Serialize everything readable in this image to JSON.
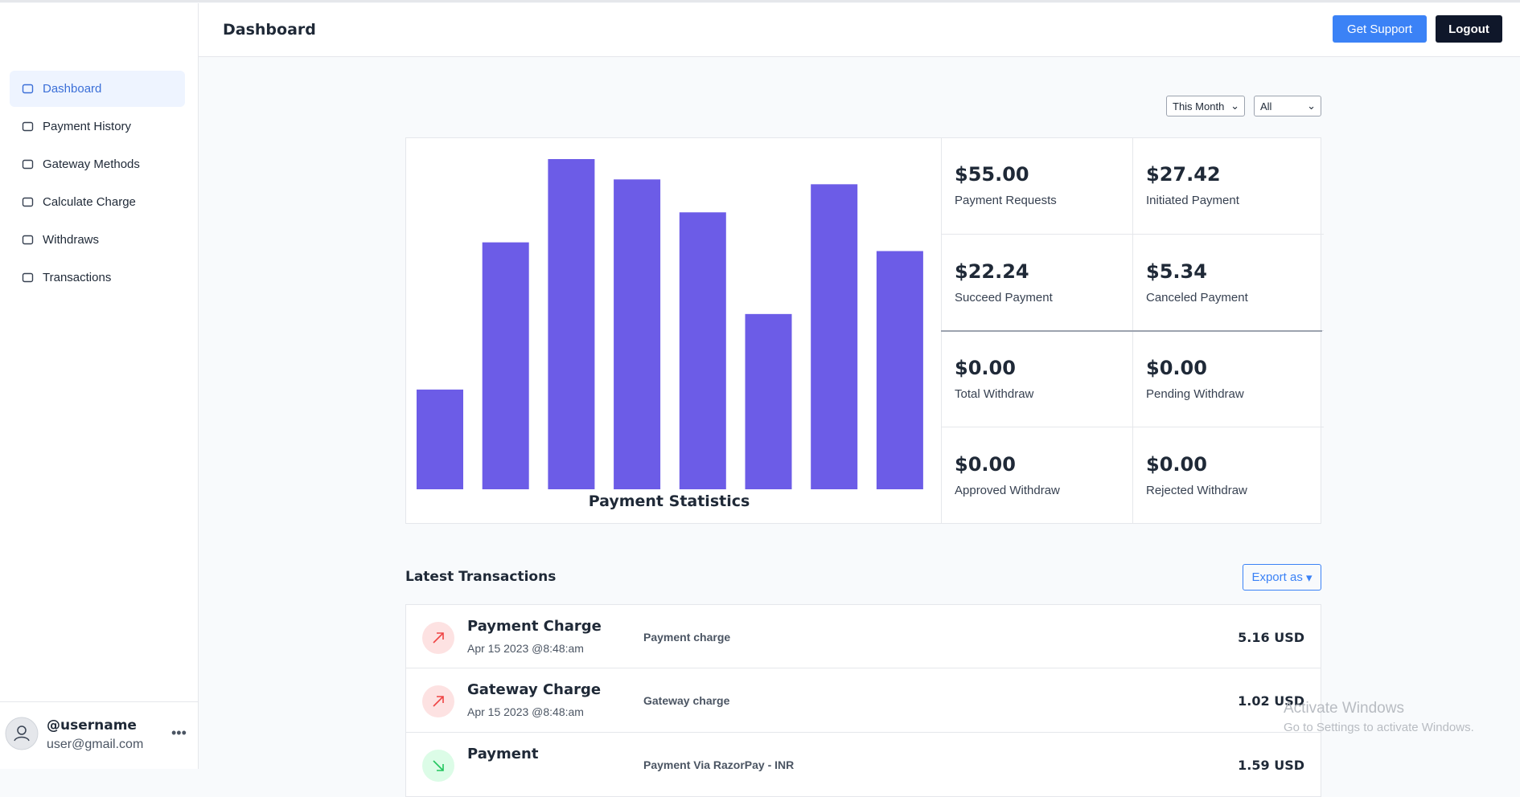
{
  "header": {
    "title": "Dashboard",
    "support": "Get Support",
    "logout": "Logout"
  },
  "nav": [
    "Dashboard",
    "Payment History",
    "Gateway Methods",
    "Calculate Charge",
    "Withdraws",
    "Transactions"
  ],
  "user": {
    "name": "@username",
    "email": "user@gmail.com"
  },
  "filters": {
    "period": "This Month",
    "scope": "All"
  },
  "chart_data": {
    "type": "bar",
    "title": "Payment Statistics",
    "values": [
      103,
      255,
      341,
      320,
      286,
      181,
      315,
      246
    ],
    "ylim": [
      0,
      341
    ],
    "color": "#6c5ce7"
  },
  "stats": [
    {
      "value": "$55.00",
      "label": "Payment Requests"
    },
    {
      "value": "$27.42",
      "label": "Initiated Payment"
    },
    {
      "value": "$22.24",
      "label": "Succeed Payment"
    },
    {
      "value": "$5.34",
      "label": "Canceled Payment"
    },
    {
      "value": "$0.00",
      "label": "Total Withdraw"
    },
    {
      "value": "$0.00",
      "label": "Pending Withdraw"
    },
    {
      "value": "$0.00",
      "label": "Approved Withdraw"
    },
    {
      "value": "$0.00",
      "label": "Rejected Withdraw"
    }
  ],
  "transactions": {
    "title": "Latest Transactions",
    "export": "Export as",
    "rows": [
      {
        "title": "Payment Charge",
        "date": "Apr 15 2023 @8:48:am",
        "description": "Payment charge",
        "amount": "5.16 USD"
      },
      {
        "title": "Gateway Charge",
        "date": "Apr 15 2023 @8:48:am",
        "description": "Gateway charge",
        "amount": "1.02 USD"
      },
      {
        "title": "Payment",
        "description": "Payment Via RazorPay - INR",
        "amount": "1.59 USD"
      }
    ]
  },
  "watermark": {
    "title": "Activate Windows",
    "text": "Go to Settings to activate Windows."
  }
}
